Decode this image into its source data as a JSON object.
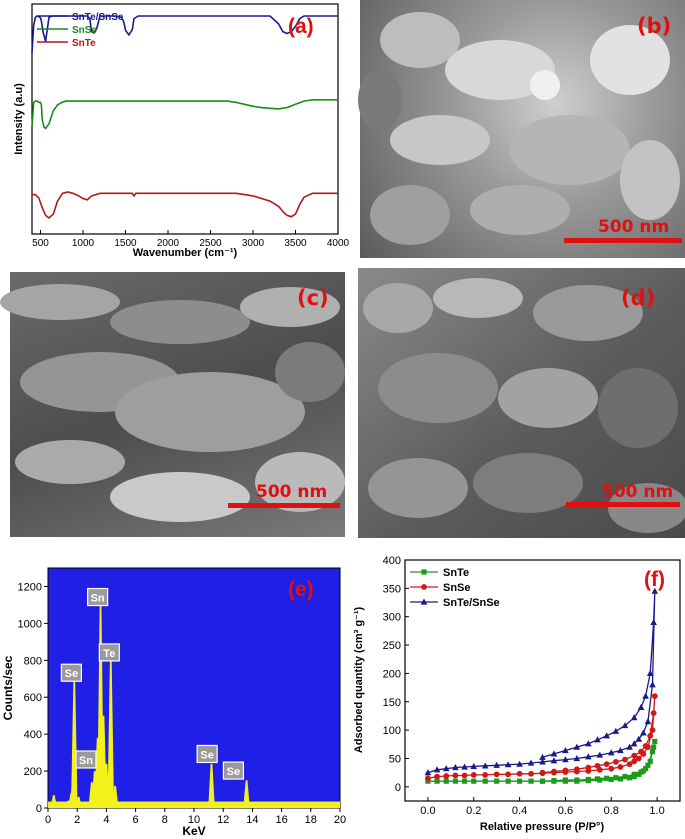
{
  "panels": {
    "a": {
      "label": "(a)"
    },
    "b": {
      "label": "(b)",
      "scale": "500 nm"
    },
    "c": {
      "label": "(c)",
      "scale": "500 nm"
    },
    "d": {
      "label": "(d)",
      "scale": "500 nm"
    },
    "e": {
      "label": "(e)"
    },
    "f": {
      "label": "(f)"
    }
  },
  "chart_data": [
    {
      "type": "line",
      "panel": "a",
      "xlabel": "Wavenumber (cm⁻¹)",
      "ylabel": "Intensity (a.u)",
      "xlim": [
        400,
        4000
      ],
      "xticks": [
        500,
        1000,
        1500,
        2000,
        2500,
        3000,
        3500,
        4000
      ],
      "legend_position": "top-left",
      "series": [
        {
          "name": "SnTe/SnSe",
          "color": "#1a1a8c",
          "x": [
            400,
            420,
            440,
            460,
            480,
            500,
            510,
            530,
            560,
            600,
            640,
            700,
            800,
            900,
            1000,
            1050,
            1080,
            1100,
            1130,
            1160,
            1200,
            1300,
            1400,
            1450,
            1480,
            1500,
            1540,
            1580,
            1600,
            1650,
            1700,
            2000,
            2500,
            2900,
            2950,
            3000,
            3050,
            3100,
            3200,
            3300,
            3350,
            3400,
            3450,
            3500,
            3550,
            3600,
            3800,
            4000
          ],
          "y": [
            38,
            80,
            92,
            94,
            93,
            91,
            86,
            70,
            55,
            92,
            94,
            94,
            94,
            94,
            94,
            94,
            90,
            70,
            68,
            74,
            94,
            94,
            94,
            92,
            85,
            72,
            65,
            73,
            90,
            94,
            94,
            94,
            94,
            94,
            94,
            94,
            94,
            94,
            94,
            82,
            70,
            67,
            70,
            78,
            90,
            94,
            94,
            94
          ]
        },
        {
          "name": "SnSe",
          "color": "#1a8c1a",
          "x": [
            400,
            420,
            440,
            460,
            480,
            500,
            510,
            520,
            540,
            560,
            600,
            650,
            700,
            750,
            800,
            900,
            1000,
            1500,
            2000,
            2500,
            2700,
            2800,
            2900,
            3000,
            3100,
            3200,
            3300,
            3400,
            3500,
            3600,
            3700,
            3800,
            4000
          ],
          "y": [
            0,
            38,
            40,
            40,
            38,
            38,
            34,
            12,
            0,
            -2,
            5,
            25,
            34,
            38,
            40,
            40,
            40,
            40,
            40,
            40,
            40,
            38,
            35,
            32,
            30,
            29,
            28,
            30,
            35,
            40,
            42,
            42,
            42
          ]
        },
        {
          "name": "SnTe",
          "color": "#b01818",
          "x": [
            400,
            440,
            480,
            520,
            560,
            600,
            650,
            700,
            760,
            820,
            880,
            950,
            1000,
            1050,
            1100,
            1200,
            1300,
            1400,
            1500,
            1580,
            1600,
            1620,
            1700,
            2000,
            2500,
            2800,
            2900,
            3000,
            3100,
            3200,
            3300,
            3350,
            3400,
            3450,
            3500,
            3550,
            3600,
            3700,
            3800,
            4000
          ],
          "y": [
            -30,
            -30,
            -35,
            -50,
            -62,
            -66,
            -60,
            -40,
            -28,
            -26,
            -28,
            -32,
            -36,
            -38,
            -32,
            -28,
            -28,
            -28,
            -28,
            -28,
            -32,
            -28,
            -28,
            -28,
            -28,
            -28,
            -30,
            -32,
            -36,
            -40,
            -48,
            -56,
            -62,
            -64,
            -60,
            -45,
            -34,
            -28,
            -28,
            -28
          ]
        }
      ]
    },
    {
      "type": "bar",
      "panel": "e",
      "xlabel": "KeV",
      "ylabel": "Counts/sec",
      "xlim": [
        0,
        20
      ],
      "ylim": [
        0,
        1300
      ],
      "xticks": [
        0,
        2,
        4,
        6,
        8,
        10,
        12,
        14,
        16,
        18,
        20
      ],
      "yticks": [
        0,
        200,
        400,
        600,
        800,
        1000,
        1200
      ],
      "background": "#1f1fe6",
      "bar_color": "#f2f21a",
      "peaks": [
        {
          "x": 0.4,
          "y": 70
        },
        {
          "x": 1.4,
          "y": 40
        },
        {
          "x": 1.6,
          "y": 80
        },
        {
          "x": 1.7,
          "y": 130
        },
        {
          "x": 1.8,
          "y": 690
        },
        {
          "x": 2.1,
          "y": 60
        },
        {
          "x": 3.0,
          "y": 140
        },
        {
          "x": 3.2,
          "y": 200
        },
        {
          "x": 3.4,
          "y": 380
        },
        {
          "x": 3.6,
          "y": 1100
        },
        {
          "x": 3.8,
          "y": 500
        },
        {
          "x": 4.0,
          "y": 240
        },
        {
          "x": 4.3,
          "y": 800
        },
        {
          "x": 4.6,
          "y": 120
        },
        {
          "x": 11.2,
          "y": 240
        },
        {
          "x": 13.6,
          "y": 150
        }
      ],
      "annotations": [
        {
          "text": "Se",
          "x": 1.6,
          "y": 730
        },
        {
          "text": "Sn",
          "x": 2.6,
          "y": 260
        },
        {
          "text": "Sn",
          "x": 3.4,
          "y": 1140
        },
        {
          "text": "Te",
          "x": 4.2,
          "y": 840
        },
        {
          "text": "Se",
          "x": 10.9,
          "y": 290
        },
        {
          "text": "Se",
          "x": 12.7,
          "y": 200
        }
      ]
    },
    {
      "type": "line",
      "panel": "f",
      "xlabel": "Relative pressure (P/P°)",
      "ylabel": "Adsorbed quantity (cm³ g⁻¹)",
      "xlim": [
        -0.1,
        1.1
      ],
      "ylim": [
        -25,
        400
      ],
      "xticks": [
        0.0,
        0.2,
        0.4,
        0.6,
        0.8,
        1.0
      ],
      "xticklabels": [
        "0.0",
        "0.2",
        "0.4",
        "0.6",
        "0.8",
        "1.0"
      ],
      "yticks": [
        0,
        50,
        100,
        150,
        200,
        250,
        300,
        350,
        400
      ],
      "legend_position": "top-left",
      "series": [
        {
          "name": "SnTe",
          "color": "#1a9c1a",
          "marker": "square",
          "x": [
            0.0,
            0.04,
            0.08,
            0.12,
            0.16,
            0.2,
            0.25,
            0.3,
            0.35,
            0.4,
            0.45,
            0.5,
            0.55,
            0.6,
            0.65,
            0.7,
            0.75,
            0.8,
            0.84,
            0.88,
            0.9,
            0.92,
            0.94,
            0.96,
            0.98,
            0.99,
            0.985,
            0.97,
            0.95,
            0.93,
            0.9,
            0.86,
            0.82,
            0.78,
            0.74,
            0.7,
            0.65,
            0.6,
            0.55,
            0.5
          ],
          "y": [
            10,
            10,
            10,
            10,
            10,
            10,
            10,
            10,
            10,
            10,
            10,
            10,
            10,
            10,
            10,
            11,
            12,
            13,
            14,
            16,
            18,
            22,
            28,
            38,
            62,
            80,
            70,
            45,
            32,
            26,
            22,
            18,
            16,
            15,
            14,
            13,
            12,
            12,
            11,
            10
          ]
        },
        {
          "name": "SnSe",
          "color": "#d01818",
          "marker": "circle",
          "x": [
            0.0,
            0.04,
            0.08,
            0.12,
            0.16,
            0.2,
            0.25,
            0.3,
            0.35,
            0.4,
            0.45,
            0.5,
            0.55,
            0.6,
            0.65,
            0.7,
            0.75,
            0.8,
            0.84,
            0.88,
            0.9,
            0.92,
            0.94,
            0.96,
            0.98,
            0.99,
            0.985,
            0.97,
            0.95,
            0.93,
            0.9,
            0.86,
            0.82,
            0.78,
            0.74,
            0.7,
            0.65,
            0.6,
            0.55,
            0.5
          ],
          "y": [
            15,
            18,
            19,
            20,
            20,
            21,
            21,
            22,
            22,
            23,
            23,
            24,
            25,
            26,
            27,
            28,
            30,
            32,
            35,
            40,
            45,
            50,
            58,
            70,
            100,
            160,
            130,
            90,
            72,
            62,
            55,
            48,
            44,
            40,
            37,
            34,
            31,
            29,
            27,
            25
          ]
        },
        {
          "name": "SnTe/SnSe",
          "color": "#1a1a8c",
          "marker": "triangle",
          "x": [
            0.0,
            0.04,
            0.08,
            0.12,
            0.16,
            0.2,
            0.25,
            0.3,
            0.35,
            0.4,
            0.45,
            0.5,
            0.55,
            0.6,
            0.65,
            0.7,
            0.75,
            0.8,
            0.84,
            0.88,
            0.9,
            0.92,
            0.94,
            0.96,
            0.98,
            0.99,
            0.985,
            0.97,
            0.95,
            0.93,
            0.9,
            0.86,
            0.82,
            0.78,
            0.74,
            0.7,
            0.65,
            0.6,
            0.55,
            0.5
          ],
          "y": [
            25,
            30,
            32,
            34,
            35,
            36,
            37,
            38,
            39,
            40,
            42,
            44,
            46,
            48,
            50,
            53,
            56,
            60,
            64,
            70,
            76,
            84,
            95,
            115,
            180,
            345,
            290,
            200,
            160,
            140,
            122,
            108,
            98,
            90,
            83,
            76,
            70,
            64,
            58,
            52
          ]
        }
      ]
    }
  ]
}
